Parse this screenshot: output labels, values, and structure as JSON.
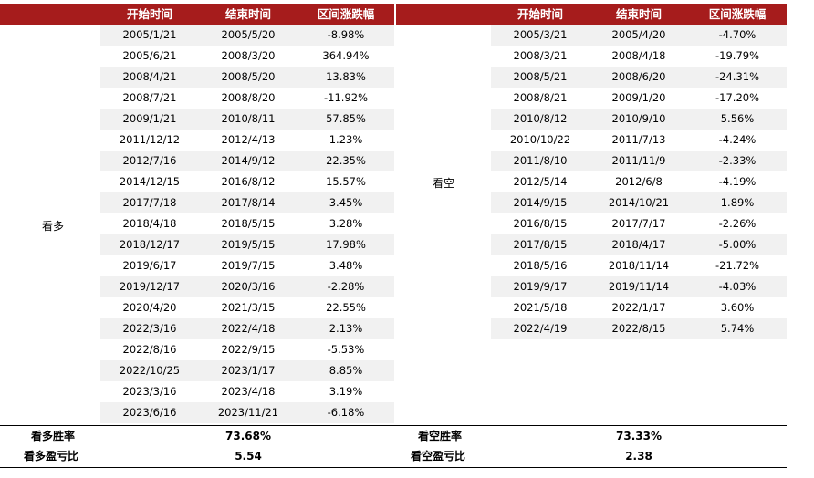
{
  "headers": {
    "start": "开始时间",
    "end": "结束时间",
    "change": "区间涨跌幅"
  },
  "left": {
    "label": "看多",
    "rows": [
      [
        "2005/1/21",
        "2005/5/20",
        "-8.98%"
      ],
      [
        "2005/6/21",
        "2008/3/20",
        "364.94%"
      ],
      [
        "2008/4/21",
        "2008/5/20",
        "13.83%"
      ],
      [
        "2008/7/21",
        "2008/8/20",
        "-11.92%"
      ],
      [
        "2009/1/21",
        "2010/8/11",
        "57.85%"
      ],
      [
        "2011/12/12",
        "2012/4/13",
        "1.23%"
      ],
      [
        "2012/7/16",
        "2014/9/12",
        "22.35%"
      ],
      [
        "2014/12/15",
        "2016/8/12",
        "15.57%"
      ],
      [
        "2017/7/18",
        "2017/8/14",
        "3.45%"
      ],
      [
        "2018/4/18",
        "2018/5/15",
        "3.28%"
      ],
      [
        "2018/12/17",
        "2019/5/15",
        "17.98%"
      ],
      [
        "2019/6/17",
        "2019/7/15",
        "3.48%"
      ],
      [
        "2019/12/17",
        "2020/3/16",
        "-2.28%"
      ],
      [
        "2020/4/20",
        "2021/3/15",
        "22.55%"
      ],
      [
        "2022/3/16",
        "2022/4/18",
        "2.13%"
      ],
      [
        "2022/8/16",
        "2022/9/15",
        "-5.53%"
      ],
      [
        "2022/10/25",
        "2023/1/17",
        "8.85%"
      ],
      [
        "2023/3/16",
        "2023/4/18",
        "3.19%"
      ],
      [
        "2023/6/16",
        "2023/11/21",
        "-6.18%"
      ]
    ],
    "win_rate_label": "看多胜率",
    "win_rate": "73.68%",
    "pl_ratio_label": "看多盈亏比",
    "pl_ratio": "5.54"
  },
  "right": {
    "label": "看空",
    "rows": [
      [
        "2005/3/21",
        "2005/4/20",
        "-4.70%"
      ],
      [
        "2008/3/21",
        "2008/4/18",
        "-19.79%"
      ],
      [
        "2008/5/21",
        "2008/6/20",
        "-24.31%"
      ],
      [
        "2008/8/21",
        "2009/1/20",
        "-17.20%"
      ],
      [
        "2010/8/12",
        "2010/9/10",
        "5.56%"
      ],
      [
        "2010/10/22",
        "2011/7/13",
        "-4.24%"
      ],
      [
        "2011/8/10",
        "2011/11/9",
        "-2.33%"
      ],
      [
        "2012/5/14",
        "2012/6/8",
        "-4.19%"
      ],
      [
        "2014/9/15",
        "2014/10/21",
        "1.89%"
      ],
      [
        "2016/8/15",
        "2017/7/17",
        "-2.26%"
      ],
      [
        "2017/8/15",
        "2018/4/17",
        "-5.00%"
      ],
      [
        "2018/5/16",
        "2018/11/14",
        "-21.72%"
      ],
      [
        "2019/9/17",
        "2019/11/14",
        "-4.03%"
      ],
      [
        "2021/5/18",
        "2022/1/17",
        "3.60%"
      ],
      [
        "2022/4/19",
        "2022/8/15",
        "5.74%"
      ]
    ],
    "win_rate_label": "看空胜率",
    "win_rate": "73.33%",
    "pl_ratio_label": "看空盈亏比",
    "pl_ratio": "2.38"
  },
  "colors": {
    "header_bg": "#a61c1c",
    "row_shade": "#f1f1f1"
  }
}
